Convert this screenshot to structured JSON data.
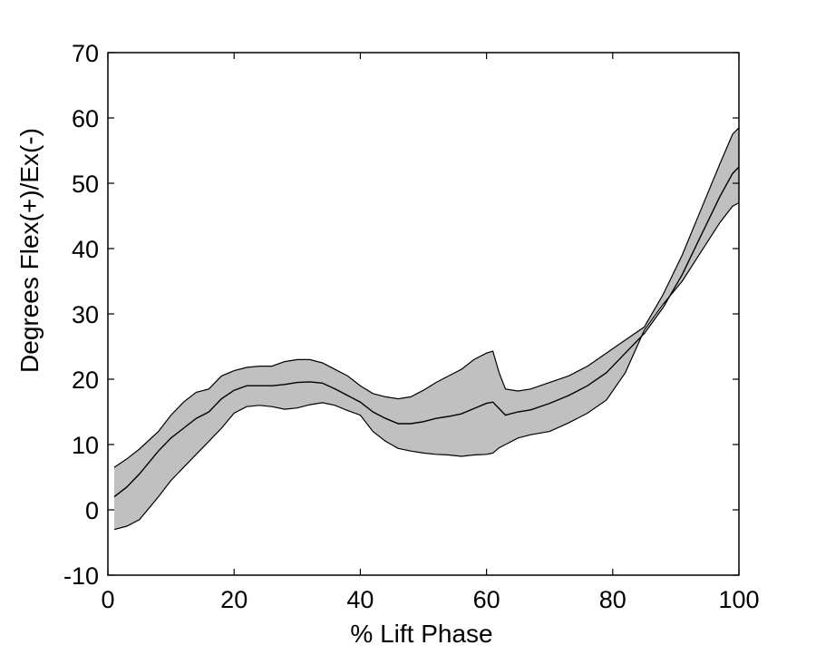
{
  "chart_data": {
    "type": "line",
    "title": "",
    "xlabel": "% Lift Phase",
    "ylabel": "Degrees Flex(+)/Ex(-)",
    "xlim": [
      0,
      100
    ],
    "ylim": [
      -10,
      70
    ],
    "grid": false,
    "band_color": "#c0c0c0",
    "line_color": "#000000",
    "x_ticks": [
      "0",
      "20",
      "40",
      "60",
      "80",
      "100"
    ],
    "y_ticks": [
      "-10",
      "0",
      "10",
      "20",
      "30",
      "40",
      "50",
      "60",
      "70"
    ],
    "x": [
      1,
      3,
      5,
      8,
      10,
      12,
      14,
      16,
      17,
      18,
      20,
      22,
      24,
      26,
      28,
      30,
      32,
      34,
      36,
      38,
      40,
      42,
      44,
      46,
      48,
      50,
      52,
      54,
      56,
      58,
      60,
      61,
      62,
      63,
      65,
      67,
      70,
      73,
      76,
      79,
      82,
      85,
      88,
      91,
      94,
      97,
      99,
      100
    ],
    "series": [
      {
        "role": "mean",
        "values": [
          2,
          3.5,
          5.5,
          9,
          11,
          12.5,
          14,
          15,
          16,
          17,
          18.3,
          19,
          19,
          19,
          19.2,
          19.5,
          19.6,
          19.4,
          18.5,
          17.5,
          16.5,
          15,
          14,
          13.2,
          13.2,
          13.5,
          14,
          14.3,
          14.7,
          15.5,
          16.3,
          16.5,
          15.5,
          14.5,
          15,
          15.3,
          16.3,
          17.5,
          19,
          21,
          24,
          27,
          31,
          36,
          42,
          48,
          51.5,
          52.5
        ]
      },
      {
        "role": "upper",
        "values": [
          6.5,
          7.8,
          9.3,
          12,
          14.5,
          16.5,
          18,
          18.5,
          19.5,
          20.5,
          21.3,
          21.8,
          22,
          22,
          22.7,
          23,
          23,
          22.5,
          21.5,
          20.5,
          19,
          17.8,
          17.3,
          17,
          17.3,
          18.3,
          19.5,
          20.5,
          21.5,
          23,
          24,
          24.3,
          21,
          18.5,
          18.2,
          18.5,
          19.5,
          20.5,
          22,
          24,
          26,
          28,
          33,
          39,
          46,
          53,
          57.5,
          58.5
        ]
      },
      {
        "role": "lower",
        "values": [
          -3,
          -2.5,
          -1.5,
          2,
          4.5,
          6.5,
          8.5,
          10.5,
          11.5,
          12.5,
          14.8,
          15.8,
          16,
          15.8,
          15.4,
          15.6,
          16.1,
          16.4,
          16,
          15.2,
          14.5,
          12,
          10.5,
          9.4,
          9,
          8.7,
          8.5,
          8.4,
          8.2,
          8.4,
          8.5,
          8.7,
          9.5,
          10,
          11,
          11.5,
          12,
          13.3,
          14.8,
          16.8,
          21,
          27.5,
          31.5,
          35,
          39.5,
          44,
          46.5,
          47
        ]
      }
    ]
  }
}
